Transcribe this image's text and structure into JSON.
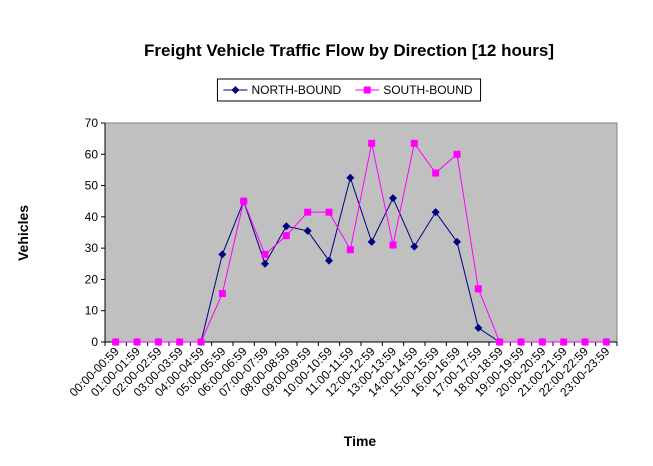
{
  "chart_data": {
    "type": "line",
    "title": "Freight Vehicle Traffic Flow by Direction [12 hours]",
    "x_label": "Time",
    "y_label": "Vehicles",
    "categories": [
      "00:00-00:59",
      "01:00-01:59",
      "02:00-02:59",
      "03:00-03:59",
      "04:00-04:59",
      "05:00-05:59",
      "06:00-06:59",
      "07:00-07:59",
      "08:00-08:59",
      "09:00-09:59",
      "10:00-10:59",
      "11:00-11:59",
      "12:00-12:59",
      "13:00-13:59",
      "14:00-14:59",
      "15:00-15:59",
      "16:00-16:59",
      "17:00-17:59",
      "18:00-18:59",
      "19:00-19:59",
      "20:00-20:59",
      "21:00-21:59",
      "22:00-22:59",
      "23:00-23:59"
    ],
    "series": [
      {
        "name": "NORTH-BOUND",
        "color": "#000080",
        "marker": "diamond",
        "values": [
          0,
          0,
          0,
          0,
          0,
          28,
          45,
          25,
          37,
          35.5,
          26,
          52.5,
          32,
          46,
          30.5,
          41.5,
          32,
          4.5,
          0,
          0,
          0,
          0,
          0,
          0
        ]
      },
      {
        "name": "SOUTH-BOUND",
        "color": "#ff00ff",
        "marker": "square",
        "values": [
          0,
          0,
          0,
          0,
          0,
          15.5,
          45,
          28,
          34,
          41.5,
          41.5,
          29.5,
          63.5,
          31,
          63.5,
          54,
          60,
          17,
          0,
          0,
          0,
          0,
          0,
          0
        ]
      }
    ],
    "ylim": [
      0,
      70
    ],
    "yticks": [
      0,
      10,
      20,
      30,
      40,
      50,
      60,
      70
    ],
    "legend": "top",
    "plot_background": "#c0c0c0"
  }
}
